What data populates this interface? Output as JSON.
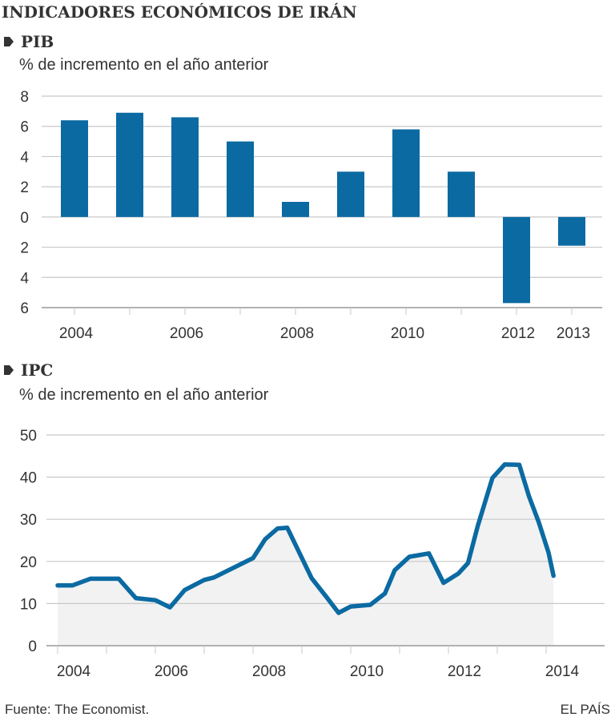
{
  "title": "INDICADORES ECONÓMICOS DE IRÁN",
  "colors": {
    "series": "#0b6aa2",
    "area_fill": "#f2f2f2",
    "grid": "#c8c8c8",
    "axis": "#999999",
    "text": "#333333"
  },
  "footer": {
    "source": "Fuente: The Economist.",
    "brand": "EL PAÍS"
  },
  "chart_data": [
    {
      "id": "pib",
      "type": "bar",
      "title": "PIB",
      "subtitle": "% de incremento en el año anterior",
      "categories": [
        "2004",
        "2005",
        "2006",
        "2007",
        "2008",
        "2009",
        "2010",
        "2011",
        "2012",
        "2013"
      ],
      "values": [
        6.4,
        6.9,
        6.6,
        5.0,
        1.0,
        3.0,
        5.8,
        3.0,
        -5.7,
        -1.9
      ],
      "x_tick_labels": [
        "2004",
        "",
        "2006",
        "",
        "2008",
        "",
        "2010",
        "",
        "2012",
        "2013"
      ],
      "ylim": [
        -6,
        8
      ],
      "y_ticks": [
        8,
        6,
        4,
        2,
        0,
        -2,
        -4,
        -6
      ],
      "y_tick_labels": [
        "8",
        "6",
        "4",
        "2",
        "0",
        "2",
        "4",
        "6"
      ],
      "xlabel": "",
      "ylabel": "",
      "grid": true,
      "legend": "none"
    },
    {
      "id": "ipc",
      "type": "area",
      "title": "IPC",
      "subtitle": "% de incremento en el año anterior",
      "x": [
        2004.0,
        2004.3,
        2004.67,
        2005.25,
        2005.6,
        2006.0,
        2006.3,
        2006.6,
        2007.0,
        2007.2,
        2008.0,
        2008.25,
        2008.5,
        2008.7,
        2009.2,
        2009.5,
        2009.75,
        2010.0,
        2010.4,
        2010.7,
        2010.9,
        2011.2,
        2011.6,
        2011.9,
        2012.2,
        2012.4,
        2012.6,
        2012.9,
        2013.15,
        2013.45,
        2013.65,
        2013.85,
        2014.05,
        2014.15
      ],
      "values": [
        14.3,
        14.3,
        15.9,
        15.9,
        11.3,
        10.8,
        9.1,
        13.2,
        15.6,
        16.2,
        20.8,
        25.3,
        27.8,
        28.0,
        16.0,
        11.6,
        7.8,
        9.3,
        9.7,
        12.4,
        17.9,
        21.1,
        21.9,
        14.9,
        17.1,
        19.6,
        28.4,
        39.8,
        43.0,
        42.9,
        35.4,
        29.3,
        22.1,
        16.6
      ],
      "xlim": [
        2004,
        2015.2
      ],
      "x_ticks": [
        2004,
        2005,
        2006,
        2007,
        2008,
        2009,
        2010,
        2011,
        2012,
        2013,
        2014
      ],
      "x_tick_labels": [
        "2004",
        "2006",
        "2008",
        "2010",
        "2012",
        "2014"
      ],
      "x_tick_label_years": [
        2004,
        2006,
        2008,
        2010,
        2012,
        2014
      ],
      "ylim": [
        0,
        50
      ],
      "y_ticks": [
        0,
        10,
        20,
        30,
        40,
        50
      ],
      "y_tick_labels": [
        "0",
        "10",
        "20",
        "30",
        "40",
        "50"
      ],
      "xlabel": "",
      "ylabel": "",
      "grid": true,
      "legend": "none"
    }
  ]
}
